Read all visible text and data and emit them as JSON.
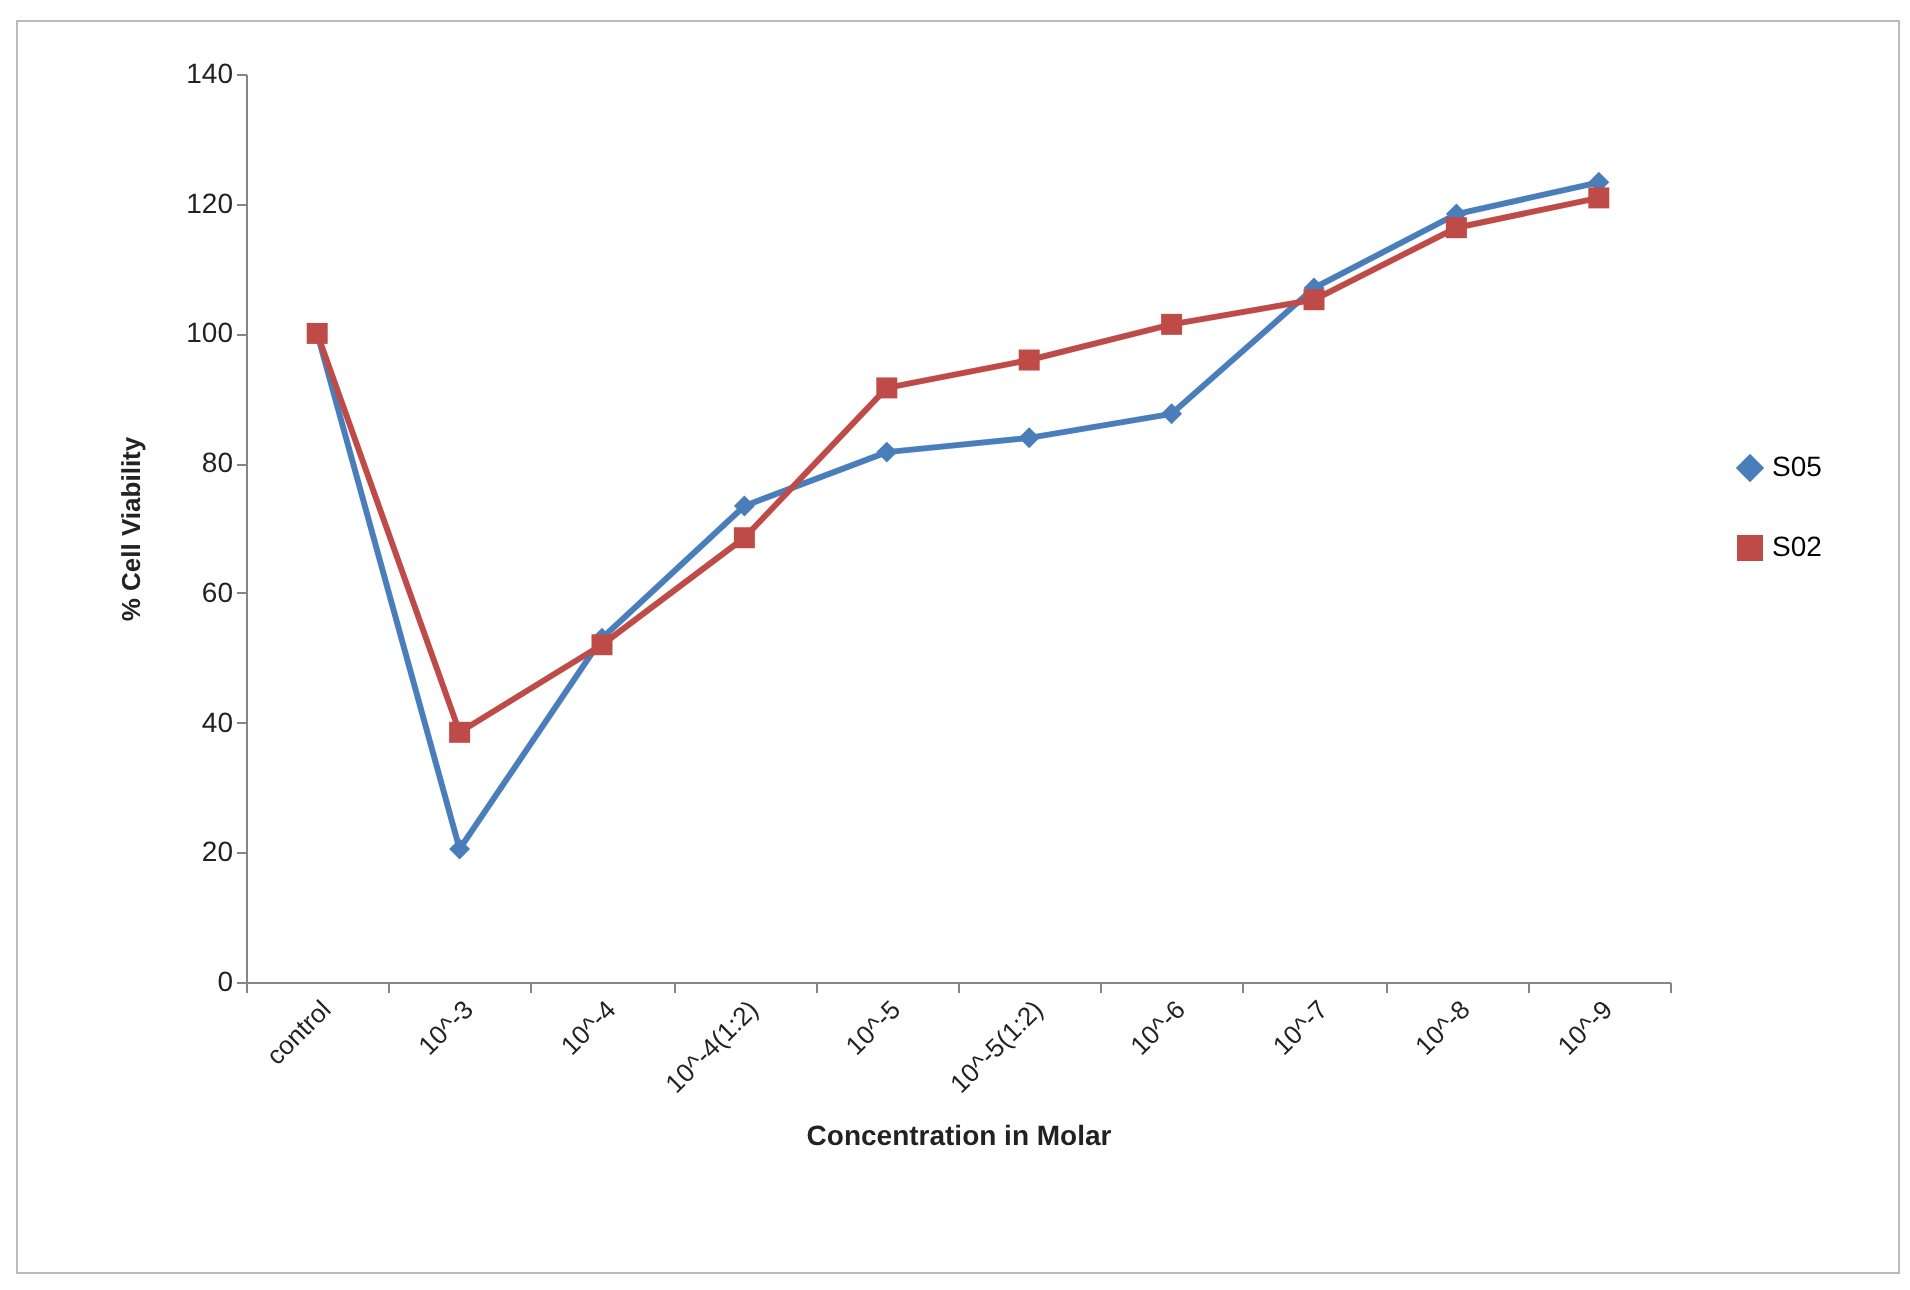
{
  "chart_data": {
    "type": "line",
    "xlabel": "Concentration in Molar",
    "ylabel": "% Cell Viability",
    "categories": [
      "control",
      "10^-3",
      "10^-4",
      "10^-4(1:2)",
      "10^-5",
      "10^-5(1:2)",
      "10^-6",
      "10^-7",
      "10^-8",
      "10^-9"
    ],
    "series": [
      {
        "name": "S05",
        "color": "#4a7ebb",
        "marker": "diamond",
        "values": [
          100,
          20.5,
          53,
          73.4,
          81.7,
          83.9,
          87.6,
          107,
          118.4,
          123.3
        ]
      },
      {
        "name": "S02",
        "color": "#be4b48",
        "marker": "square",
        "values": [
          100,
          38.5,
          52,
          68.5,
          91.6,
          95.9,
          101.4,
          105.2,
          116.3,
          120.9
        ]
      }
    ],
    "ylim": [
      0,
      140
    ],
    "yticks": [
      0,
      20,
      40,
      60,
      80,
      100,
      120,
      140
    ],
    "grid": false,
    "legend": "right",
    "line_style": "solid"
  }
}
